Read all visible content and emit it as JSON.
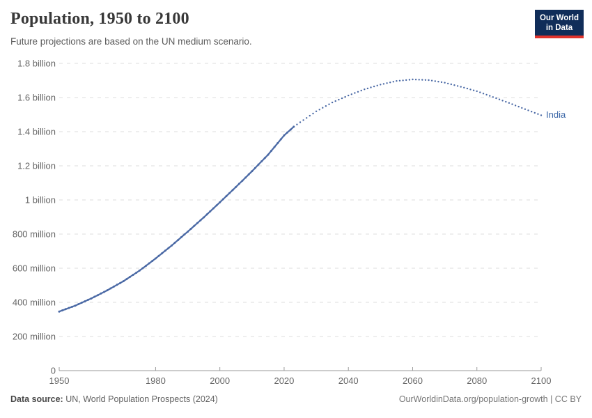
{
  "header": {
    "title": "Population, 1950 to 2100",
    "subtitle": "Future projections are based on the UN medium scenario."
  },
  "logo": {
    "line1": "Our World",
    "line2": "in Data"
  },
  "footer": {
    "source_label": "Data source:",
    "source_text": "UN, World Population Prospects (2024)",
    "attribution": "OurWorldinData.org/population-growth | CC BY"
  },
  "chart_data": {
    "type": "line",
    "title": "Population, 1950 to 2100",
    "entity_label": "India",
    "xlabel": "",
    "ylabel": "",
    "xlim": [
      1950,
      2100
    ],
    "ylim": [
      0,
      1800000000
    ],
    "grid": "dashed-horizontal",
    "legend_position": "end-of-line-label",
    "x_ticks": [
      1950,
      1980,
      2000,
      2020,
      2040,
      2060,
      2080,
      2100
    ],
    "y_ticks": [
      {
        "value": 0,
        "label": "0"
      },
      {
        "value": 200,
        "label": "200 million"
      },
      {
        "value": 400,
        "label": "400 million"
      },
      {
        "value": 600,
        "label": "600 million"
      },
      {
        "value": 800,
        "label": "800 million"
      },
      {
        "value": 1000,
        "label": "1 billion"
      },
      {
        "value": 1200,
        "label": "1.2 billion"
      },
      {
        "value": 1400,
        "label": "1.4 billion"
      },
      {
        "value": 1600,
        "label": "1.6 billion"
      },
      {
        "value": 1800,
        "label": "1.8 billion"
      }
    ],
    "unit_of_values": "millions of people",
    "series": [
      {
        "name": "India",
        "style_historical": "solid-beaded",
        "style_projection": "dotted",
        "projection_start_year": 2023,
        "points": [
          [
            1950,
            346
          ],
          [
            1955,
            381
          ],
          [
            1960,
            423
          ],
          [
            1965,
            471
          ],
          [
            1970,
            524
          ],
          [
            1975,
            586
          ],
          [
            1980,
            657
          ],
          [
            1985,
            733
          ],
          [
            1990,
            814
          ],
          [
            1995,
            898
          ],
          [
            2000,
            986
          ],
          [
            2005,
            1076
          ],
          [
            2010,
            1168
          ],
          [
            2015,
            1265
          ],
          [
            2020,
            1378
          ],
          [
            2023,
            1429
          ],
          [
            2025,
            1455
          ],
          [
            2030,
            1519
          ],
          [
            2035,
            1571
          ],
          [
            2040,
            1612
          ],
          [
            2045,
            1648
          ],
          [
            2050,
            1676
          ],
          [
            2055,
            1697
          ],
          [
            2060,
            1706
          ],
          [
            2065,
            1702
          ],
          [
            2070,
            1687
          ],
          [
            2075,
            1663
          ],
          [
            2080,
            1637
          ],
          [
            2085,
            1603
          ],
          [
            2090,
            1568
          ],
          [
            2095,
            1532
          ],
          [
            2100,
            1496
          ]
        ]
      }
    ],
    "colors": {
      "line": "#4a69a5",
      "entity_label": "#3a66a7",
      "gridline": "#dedede",
      "axis": "#9a9a9a",
      "tick_text": "#666666"
    }
  }
}
